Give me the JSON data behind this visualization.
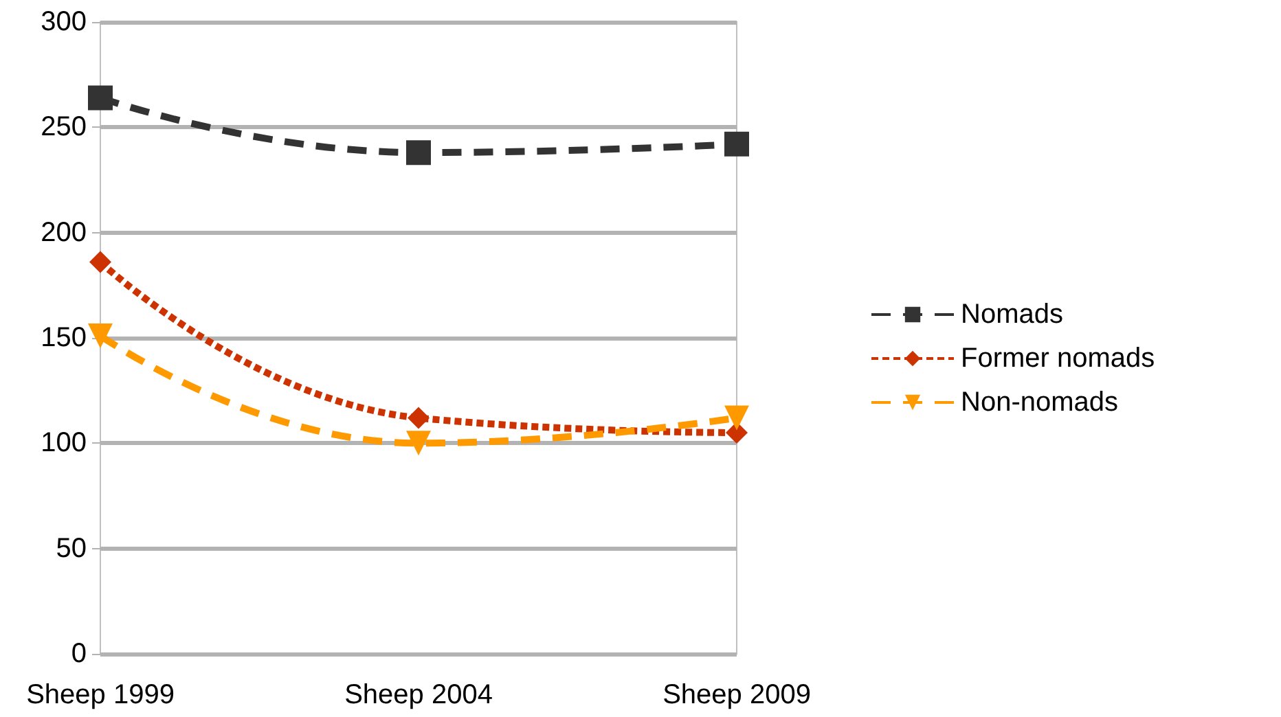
{
  "chart_data": {
    "type": "line",
    "categories": [
      "Sheep 1999",
      "Sheep 2004",
      "Sheep 2009"
    ],
    "series": [
      {
        "name": "Nomads",
        "color": "#333333",
        "values": [
          264,
          238,
          242
        ],
        "marker": "square",
        "line_style": "dashed"
      },
      {
        "name": "Former nomads",
        "color": "#cc3300",
        "values": [
          186,
          112,
          105
        ],
        "marker": "diamond",
        "line_style": "dotted"
      },
      {
        "name": "Non-nomads",
        "color": "#ff9900",
        "values": [
          151,
          100,
          112
        ],
        "marker": "triangle",
        "line_style": "dashed"
      }
    ],
    "ylim": [
      0,
      300
    ],
    "yticks": [
      0,
      50,
      100,
      150,
      200,
      250,
      300
    ],
    "grid": "y",
    "legend": "right"
  }
}
